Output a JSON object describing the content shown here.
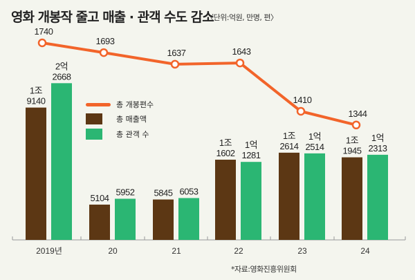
{
  "chart_data": {
    "type": "bar",
    "title": "영화 개봉작 줄고 매출 · 관객 수도 감소",
    "subtitle": "〈단위:억원, 만명, 편〉",
    "categories": [
      "2019년",
      "20",
      "21",
      "22",
      "23",
      "24"
    ],
    "series": [
      {
        "name": "총 개봉편수",
        "type": "line",
        "color": "#f2642a",
        "values": [
          1740,
          1693,
          1637,
          1643,
          1410,
          1344
        ],
        "labels": [
          "1740",
          "1693",
          "1637",
          "1643",
          "1410",
          "1344"
        ]
      },
      {
        "name": "총 매출액",
        "type": "bar",
        "color": "#5c3714",
        "values": [
          19140,
          5104,
          5845,
          11602,
          12614,
          11945
        ],
        "labels": [
          [
            "1조",
            "9140"
          ],
          [
            "",
            "5104"
          ],
          [
            "",
            "5845"
          ],
          [
            "1조",
            "1602"
          ],
          [
            "1조",
            "2614"
          ],
          [
            "1조",
            "1945"
          ]
        ]
      },
      {
        "name": "총 관객 수",
        "type": "bar",
        "color": "#2bb673",
        "values": [
          22668,
          5952,
          6053,
          11281,
          12514,
          12313
        ],
        "labels": [
          [
            "2억",
            "2668"
          ],
          [
            "",
            "5952"
          ],
          [
            "",
            "6053"
          ],
          [
            "1억",
            "1281"
          ],
          [
            "1억",
            "2514"
          ],
          [
            "1억",
            "2313"
          ]
        ]
      }
    ],
    "legend_position": "left-middle",
    "grid": false
  },
  "source": "*자료:영화진흥위원회"
}
